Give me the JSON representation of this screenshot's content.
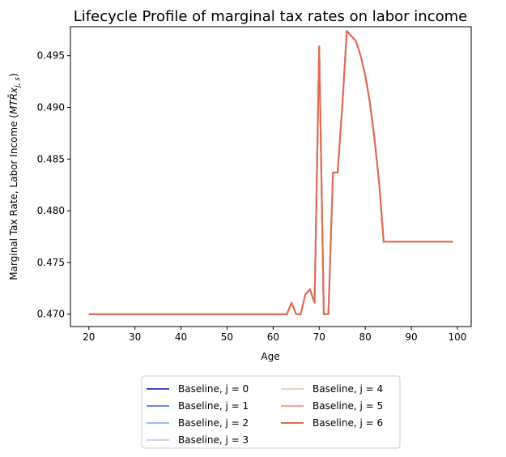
{
  "chart_data": {
    "type": "line",
    "title": "Lifecycle Profile of marginal tax rates on labor income",
    "xlabel": "Age",
    "ylabel": "Marginal Tax Rate, Labor Income ($MT\\bar{R}x_{j,s}$)",
    "xlim": [
      16,
      103
    ],
    "ylim": [
      0.4688,
      0.4978
    ],
    "xticks": [
      20,
      30,
      40,
      50,
      60,
      70,
      80,
      90,
      100
    ],
    "yticks": [
      0.47,
      0.475,
      0.48,
      0.485,
      0.49,
      0.495
    ],
    "ytick_labels": [
      "0.470",
      "0.475",
      "0.480",
      "0.485",
      "0.490",
      "0.495"
    ],
    "grid": false,
    "legend_position": "below",
    "x": [
      20,
      21,
      22,
      23,
      24,
      25,
      26,
      27,
      28,
      29,
      30,
      31,
      32,
      33,
      34,
      35,
      36,
      37,
      38,
      39,
      40,
      41,
      42,
      43,
      44,
      45,
      46,
      47,
      48,
      49,
      50,
      51,
      52,
      53,
      54,
      55,
      56,
      57,
      58,
      59,
      60,
      61,
      62,
      63,
      64,
      65,
      66,
      67,
      68,
      69,
      70,
      71,
      72,
      73,
      74,
      75,
      76,
      77,
      78,
      79,
      80,
      81,
      82,
      83,
      84,
      85,
      86,
      87,
      88,
      89,
      90,
      91,
      92,
      93,
      94,
      95,
      96,
      97,
      98,
      99
    ],
    "series": [
      {
        "name": "Baseline, j = 0",
        "color": "#3b4cc0"
      },
      {
        "name": "Baseline, j = 1",
        "color": "#6788ee"
      },
      {
        "name": "Baseline, j = 2",
        "color": "#9abbff"
      },
      {
        "name": "Baseline, j = 3",
        "color": "#c9d7f0"
      },
      {
        "name": "Baseline, j = 4",
        "color": "#edd1c2"
      },
      {
        "name": "Baseline, j = 5",
        "color": "#f7a889"
      },
      {
        "name": "Baseline, j = 6",
        "color": "#e26952"
      }
    ],
    "values": [
      0.47,
      0.47,
      0.47,
      0.47,
      0.47,
      0.47,
      0.47,
      0.47,
      0.47,
      0.47,
      0.47,
      0.47,
      0.47,
      0.47,
      0.47,
      0.47,
      0.47,
      0.47,
      0.47,
      0.47,
      0.47,
      0.47,
      0.47,
      0.47,
      0.47,
      0.47,
      0.47,
      0.47,
      0.47,
      0.47,
      0.47,
      0.47,
      0.47,
      0.47,
      0.47,
      0.47,
      0.47,
      0.47,
      0.47,
      0.47,
      0.47,
      0.47,
      0.47,
      0.47,
      0.4711,
      0.47,
      0.47,
      0.4719,
      0.4724,
      0.4711,
      0.4959,
      0.47,
      0.47,
      0.4837,
      0.4837,
      0.49,
      0.4974,
      0.4969,
      0.4964,
      0.495,
      0.4931,
      0.4905,
      0.487,
      0.4828,
      0.477,
      0.477,
      0.477,
      0.477,
      0.477,
      0.477,
      0.477,
      0.477,
      0.477,
      0.477,
      0.477,
      0.477,
      0.477,
      0.477,
      0.477,
      0.477
    ]
  }
}
